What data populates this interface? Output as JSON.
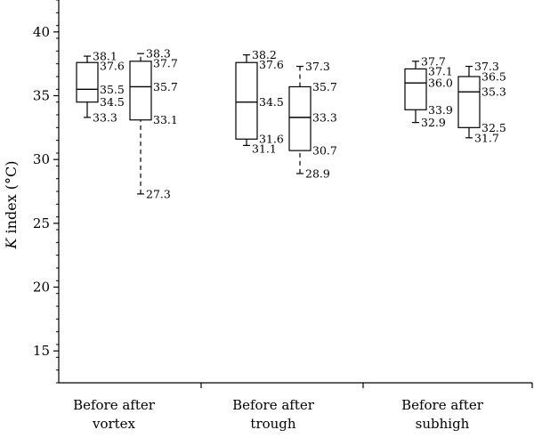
{
  "chart_data": {
    "type": "box",
    "ylabel_italic": "K",
    "ylabel_rest": " index (°C)",
    "ylim": [
      12.5,
      42.5
    ],
    "yticks": [
      15,
      20,
      25,
      30,
      35,
      40
    ],
    "grid": false,
    "categories": [
      {
        "line1": "Before after",
        "line2": "vortex"
      },
      {
        "line1": "Before after",
        "line2": "trough"
      },
      {
        "line1": "Before after",
        "line2": "subhigh"
      }
    ],
    "boxes": [
      {
        "group": 0,
        "period": "before",
        "stats": [
          33.3,
          34.5,
          35.5,
          37.6,
          38.1
        ],
        "whisker_style": "solid"
      },
      {
        "group": 0,
        "period": "after",
        "stats": [
          27.3,
          33.1,
          35.7,
          37.7,
          38.3
        ],
        "whisker_style": "dashed"
      },
      {
        "group": 1,
        "period": "before",
        "stats": [
          31.1,
          31.6,
          34.5,
          37.6,
          38.2
        ],
        "whisker_style": "solid"
      },
      {
        "group": 1,
        "period": "after",
        "stats": [
          28.9,
          30.7,
          33.3,
          35.7,
          37.3
        ],
        "whisker_style": "dashed"
      },
      {
        "group": 2,
        "period": "before",
        "stats": [
          32.9,
          33.9,
          36.0,
          37.1,
          37.7
        ],
        "whisker_style": "solid"
      },
      {
        "group": 2,
        "period": "after",
        "stats": [
          31.7,
          32.5,
          35.3,
          36.5,
          37.3
        ],
        "whisker_style": "solid"
      }
    ],
    "stat_labels": [
      [
        "38.1",
        "37.6",
        "35.5",
        "34.5",
        "33.3"
      ],
      [
        "38.3",
        "37.7",
        "35.7",
        "33.1",
        "27.3"
      ],
      [
        "38.2",
        "37.6",
        "34.5",
        "31.6",
        "31.1"
      ],
      [
        "37.3",
        "35.7",
        "33.3",
        "30.7",
        "28.9"
      ],
      [
        "37.7",
        "37.1",
        "36.0",
        "33.9",
        "32.9"
      ],
      [
        "37.3",
        "36.5",
        "35.3",
        "32.5",
        "31.7"
      ]
    ]
  }
}
